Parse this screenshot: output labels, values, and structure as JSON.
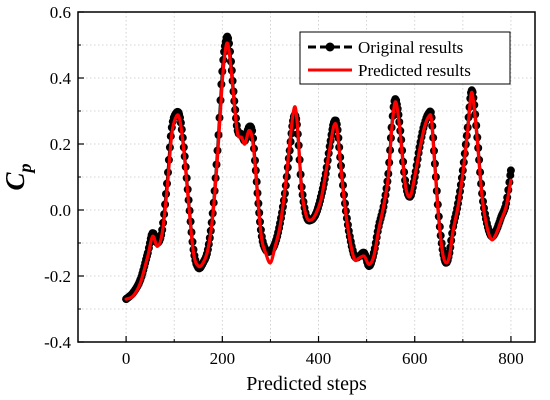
{
  "chart_data": {
    "type": "line",
    "xlabel": "Predicted steps",
    "ylabel": {
      "main": "C",
      "sub": "p"
    },
    "xlim": [
      -100,
      850
    ],
    "ylim": [
      -0.4,
      0.6
    ],
    "xticks": [
      0,
      200,
      400,
      600,
      800
    ],
    "xtick_labels": [
      "0",
      "200",
      "400",
      "600",
      "800"
    ],
    "yticks": [
      -0.4,
      -0.2,
      0.0,
      0.2,
      0.4,
      0.6
    ],
    "ytick_labels": [
      "-0.4",
      "-0.2",
      "0.0",
      "0.2",
      "0.4",
      "0.6"
    ],
    "grid": true,
    "legend_position": "top-right",
    "series": [
      {
        "name": "Original results",
        "style": "dashed-line-with-circle-markers",
        "color": "#000000",
        "x": [
          0,
          15,
          30,
          45,
          55,
          65,
          75,
          85,
          95,
          105,
          112,
          120,
          130,
          140,
          150,
          160,
          170,
          180,
          190,
          200,
          207,
          212,
          218,
          225,
          232,
          240,
          247,
          255,
          262,
          268,
          275,
          282,
          290,
          300,
          310,
          320,
          330,
          340,
          347,
          352,
          357,
          365,
          375,
          385,
          395,
          405,
          415,
          425,
          432,
          438,
          445,
          455,
          465,
          475,
          485,
          495,
          505,
          515,
          525,
          535,
          545,
          552,
          558,
          563,
          570,
          580,
          590,
          600,
          610,
          620,
          630,
          635,
          642,
          650,
          658,
          665,
          672,
          680,
          690,
          700,
          710,
          717,
          722,
          730,
          740,
          750,
          760,
          770,
          780,
          790,
          800
        ],
        "y": [
          -0.27,
          -0.25,
          -0.21,
          -0.13,
          -0.07,
          -0.1,
          -0.06,
          0.08,
          0.25,
          0.295,
          0.28,
          0.19,
          0.03,
          -0.12,
          -0.175,
          -0.16,
          -0.12,
          -0.01,
          0.18,
          0.42,
          0.51,
          0.52,
          0.45,
          0.33,
          0.24,
          0.23,
          0.21,
          0.25,
          0.24,
          0.15,
          0.02,
          -0.08,
          -0.12,
          -0.125,
          -0.1,
          -0.04,
          0.05,
          0.18,
          0.27,
          0.285,
          0.23,
          0.07,
          -0.02,
          -0.03,
          -0.01,
          0.04,
          0.11,
          0.21,
          0.265,
          0.26,
          0.16,
          0.02,
          -0.08,
          -0.14,
          -0.14,
          -0.13,
          -0.17,
          -0.13,
          -0.05,
          0.01,
          0.11,
          0.25,
          0.33,
          0.32,
          0.24,
          0.09,
          0.04,
          0.1,
          0.19,
          0.26,
          0.295,
          0.28,
          0.14,
          -0.02,
          -0.12,
          -0.16,
          -0.13,
          -0.05,
          0.02,
          0.12,
          0.25,
          0.355,
          0.34,
          0.22,
          0.05,
          -0.04,
          -0.08,
          -0.06,
          -0.02,
          0.02,
          0.12
        ]
      },
      {
        "name": "Predicted results",
        "style": "solid-line",
        "color": "#ff0000",
        "x": [
          0,
          15,
          30,
          45,
          55,
          65,
          75,
          85,
          95,
          105,
          112,
          120,
          130,
          140,
          150,
          160,
          170,
          180,
          190,
          200,
          207,
          212,
          218,
          225,
          232,
          240,
          247,
          255,
          262,
          268,
          275,
          282,
          290,
          300,
          310,
          320,
          330,
          340,
          347,
          352,
          357,
          365,
          375,
          385,
          395,
          405,
          415,
          425,
          432,
          438,
          445,
          455,
          465,
          475,
          485,
          495,
          505,
          515,
          525,
          535,
          545,
          552,
          558,
          563,
          570,
          580,
          590,
          600,
          610,
          620,
          630,
          635,
          642,
          650,
          658,
          665,
          672,
          680,
          690,
          700,
          710,
          717,
          722,
          730,
          740,
          750,
          760,
          770,
          780,
          790,
          800
        ],
        "y": [
          -0.27,
          -0.26,
          -0.22,
          -0.14,
          -0.08,
          -0.11,
          -0.07,
          0.06,
          0.23,
          0.285,
          0.27,
          0.18,
          0.02,
          -0.13,
          -0.17,
          -0.16,
          -0.12,
          -0.02,
          0.16,
          0.39,
          0.49,
          0.5,
          0.43,
          0.32,
          0.23,
          0.22,
          0.2,
          0.24,
          0.22,
          0.14,
          0.01,
          -0.09,
          -0.13,
          -0.16,
          -0.11,
          -0.05,
          0.06,
          0.2,
          0.29,
          0.31,
          0.24,
          0.06,
          -0.02,
          -0.03,
          -0.01,
          0.03,
          0.11,
          0.2,
          0.255,
          0.25,
          0.15,
          0.01,
          -0.09,
          -0.15,
          -0.145,
          -0.14,
          -0.165,
          -0.14,
          -0.06,
          0.01,
          0.1,
          0.24,
          0.32,
          0.315,
          0.23,
          0.08,
          0.04,
          0.1,
          0.18,
          0.25,
          0.285,
          0.27,
          0.13,
          -0.03,
          -0.13,
          -0.16,
          -0.14,
          -0.06,
          0.01,
          0.11,
          0.24,
          0.35,
          0.33,
          0.21,
          0.04,
          -0.05,
          -0.09,
          -0.07,
          -0.03,
          0.01,
          0.09
        ]
      }
    ]
  }
}
